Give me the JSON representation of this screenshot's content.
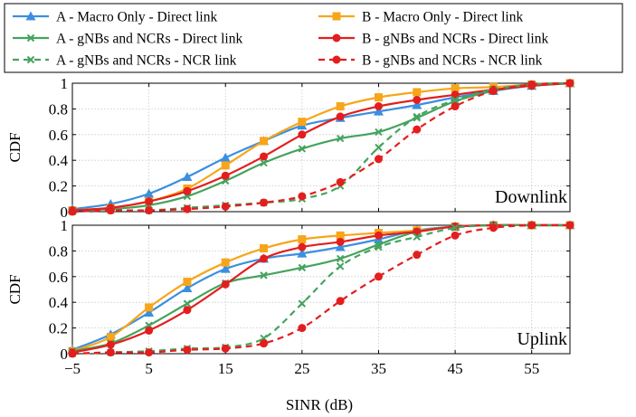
{
  "chart_data": {
    "type": "line",
    "xlabel": "SINR (dB)",
    "x_ticks": [
      -5,
      5,
      15,
      25,
      35,
      45,
      55
    ],
    "x_tick_labels": [
      "−5",
      "5",
      "15",
      "25",
      "35",
      "45",
      "55"
    ],
    "xlim": [
      -5,
      60
    ],
    "legend_position": "top",
    "series_styles": [
      {
        "name": "A - Macro Only - Direct link",
        "color": "#3a8fe0",
        "dash": "solid",
        "marker": "triangle"
      },
      {
        "name": "B - Macro Only - Direct link",
        "color": "#f7a51a",
        "dash": "solid",
        "marker": "square"
      },
      {
        "name": "A - gNBs and NCRs - Direct link",
        "color": "#45a35e",
        "dash": "solid",
        "marker": "x"
      },
      {
        "name": "B - gNBs and NCRs - Direct link",
        "color": "#e31e1e",
        "dash": "solid",
        "marker": "circle"
      },
      {
        "name": "A - gNBs and NCRs - NCR link",
        "color": "#45a35e",
        "dash": "dashed",
        "marker": "x"
      },
      {
        "name": "B - gNBs and NCRs - NCR link",
        "color": "#e31e1e",
        "dash": "dashed",
        "marker": "circle"
      }
    ],
    "panels": [
      {
        "label": "Downlink",
        "ylabel": "CDF",
        "ylim": [
          0,
          1
        ],
        "y_ticks": [
          0,
          0.2,
          0.4,
          0.6,
          0.8,
          1
        ],
        "y_tick_labels": [
          "0",
          "0.2",
          "0.4",
          "0.6",
          "0.8",
          "1"
        ],
        "x": [
          -5,
          0,
          5,
          10,
          15,
          20,
          25,
          30,
          35,
          40,
          45,
          50,
          55,
          60
        ],
        "series": [
          {
            "name": "A - Macro Only - Direct link",
            "values": [
              0.02,
              0.06,
              0.14,
              0.27,
              0.42,
              0.55,
              0.67,
              0.73,
              0.78,
              0.83,
              0.89,
              0.94,
              0.98,
              1.0
            ]
          },
          {
            "name": "B - Macro Only - Direct link",
            "values": [
              0.01,
              0.03,
              0.08,
              0.18,
              0.36,
              0.55,
              0.7,
              0.82,
              0.89,
              0.93,
              0.96,
              0.97,
              0.99,
              1.0
            ]
          },
          {
            "name": "A - gNBs and NCRs - Direct link",
            "values": [
              0.01,
              0.02,
              0.05,
              0.12,
              0.24,
              0.38,
              0.49,
              0.57,
              0.62,
              0.73,
              0.86,
              0.94,
              0.99,
              1.0
            ]
          },
          {
            "name": "B - gNBs and NCRs - Direct link",
            "values": [
              0.01,
              0.03,
              0.08,
              0.16,
              0.28,
              0.43,
              0.6,
              0.74,
              0.82,
              0.87,
              0.91,
              0.95,
              0.98,
              1.0
            ]
          },
          {
            "name": "A - gNBs and NCRs - NCR link",
            "values": [
              0.0,
              0.01,
              0.01,
              0.03,
              0.05,
              0.07,
              0.1,
              0.2,
              0.5,
              0.74,
              0.87,
              0.95,
              0.99,
              1.0
            ]
          },
          {
            "name": "B - gNBs and NCRs - NCR link",
            "values": [
              0.0,
              0.01,
              0.01,
              0.02,
              0.04,
              0.07,
              0.12,
              0.23,
              0.41,
              0.64,
              0.82,
              0.94,
              0.99,
              1.0
            ]
          }
        ]
      },
      {
        "label": "Uplink",
        "ylabel": "CDF",
        "ylim": [
          0,
          1
        ],
        "y_ticks": [
          0,
          0.2,
          0.4,
          0.6,
          0.8,
          1
        ],
        "y_tick_labels": [
          "0",
          "0.2",
          "0.4",
          "0.6",
          "0.8",
          "1"
        ],
        "x": [
          -5,
          0,
          5,
          10,
          15,
          20,
          25,
          30,
          35,
          40,
          45,
          50,
          55,
          60
        ],
        "series": [
          {
            "name": "A - Macro Only - Direct link",
            "values": [
              0.03,
              0.15,
              0.32,
              0.51,
              0.66,
              0.74,
              0.78,
              0.83,
              0.89,
              0.96,
              0.99,
              1.0,
              1.0,
              1.0
            ]
          },
          {
            "name": "B - Macro Only - Direct link",
            "values": [
              0.02,
              0.13,
              0.36,
              0.56,
              0.71,
              0.82,
              0.89,
              0.92,
              0.94,
              0.96,
              0.99,
              1.0,
              1.0,
              1.0
            ]
          },
          {
            "name": "A - gNBs and NCRs - Direct link",
            "values": [
              0.02,
              0.08,
              0.22,
              0.39,
              0.55,
              0.61,
              0.67,
              0.74,
              0.85,
              0.95,
              0.99,
              1.0,
              1.0,
              1.0
            ]
          },
          {
            "name": "B - gNBs and NCRs - Direct link",
            "values": [
              0.01,
              0.07,
              0.18,
              0.34,
              0.54,
              0.74,
              0.83,
              0.87,
              0.92,
              0.95,
              0.99,
              1.0,
              1.0,
              1.0
            ]
          },
          {
            "name": "A - gNBs and NCRs - NCR link",
            "values": [
              0.0,
              0.01,
              0.02,
              0.04,
              0.05,
              0.12,
              0.39,
              0.68,
              0.83,
              0.91,
              0.98,
              1.0,
              1.0,
              1.0
            ]
          },
          {
            "name": "B - gNBs and NCRs - NCR link",
            "values": [
              0.0,
              0.01,
              0.01,
              0.03,
              0.04,
              0.08,
              0.2,
              0.41,
              0.6,
              0.77,
              0.92,
              0.98,
              1.0,
              1.0
            ]
          }
        ]
      }
    ]
  }
}
